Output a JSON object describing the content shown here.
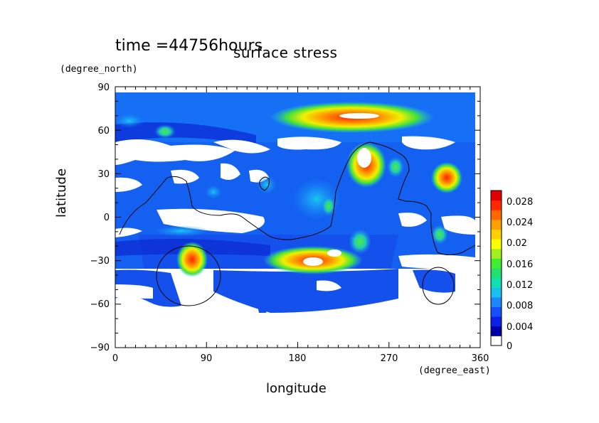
{
  "title": "time =44756hours",
  "subtitle": "surface stress",
  "chart_data": {
    "type": "heatmap",
    "title": "surface stress",
    "xlabel": "longitude",
    "xunit": "(degree_east)",
    "ylabel": "latitude",
    "yunit": "(degree_north)",
    "xlim": [
      0,
      360
    ],
    "ylim": [
      -90,
      90
    ],
    "xticks": [
      "0",
      "90",
      "180",
      "270",
      "360"
    ],
    "yticks": [
      "90",
      "60",
      "30",
      "0",
      "−30",
      "−60",
      "−90"
    ],
    "colorbar": {
      "range": [
        0,
        0.03
      ],
      "tick_labels": [
        "0",
        "0.004",
        "0.008",
        "0.012",
        "0.016",
        "0.02",
        "0.024",
        "0.028"
      ],
      "colors": [
        "#ffffff",
        "#0000a8",
        "#0a20e6",
        "#1450ff",
        "#1c88ff",
        "#18c0f0",
        "#10e0b0",
        "#20e070",
        "#40ee30",
        "#a0f020",
        "#ffff00",
        "#ffd000",
        "#ffa000",
        "#ff6800",
        "#ff2800",
        "#e00000"
      ]
    },
    "hotspots": [
      {
        "lon": 240,
        "lat": 70,
        "value": 0.026
      },
      {
        "lon": 210,
        "lat": 68,
        "value": 0.02
      },
      {
        "lon": 250,
        "lat": 38,
        "value": 0.028
      },
      {
        "lon": 325,
        "lat": 25,
        "value": 0.025
      },
      {
        "lon": 75,
        "lat": -30,
        "value": 0.028
      },
      {
        "lon": 215,
        "lat": -30,
        "value": 0.027
      },
      {
        "lon": 270,
        "lat": 35,
        "value": 0.016
      },
      {
        "lon": 325,
        "lat": -20,
        "value": 0.014
      },
      {
        "lon": 50,
        "lat": 60,
        "value": 0.012
      }
    ]
  }
}
